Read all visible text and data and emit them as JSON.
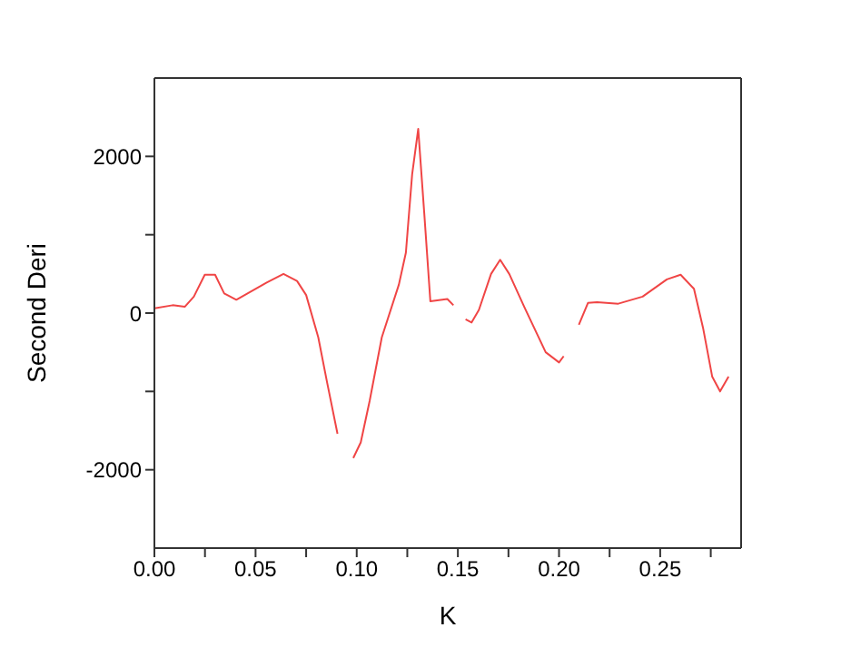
{
  "chart_data": {
    "type": "line",
    "xlabel": "K",
    "ylabel": "Second Deri",
    "x": [
      0,
      0.009,
      0.015,
      0.0195,
      0.0249,
      0.03,
      0.0345,
      0.0405,
      0.0555,
      0.0638,
      0.0705,
      0.075,
      0.081,
      0.0854,
      0.0905,
      0.094,
      0.0983,
      0.102,
      0.1064,
      0.1124,
      0.1208,
      0.1243,
      0.1274,
      0.1304,
      0.1334,
      0.1364,
      0.1448,
      0.1478,
      0.1508,
      0.1538,
      0.1568,
      0.1604,
      0.1664,
      0.1709,
      0.1754,
      0.1828,
      0.1934,
      0.2,
      0.2023,
      0.206,
      0.2098,
      0.2143,
      0.2188,
      0.2293,
      0.2413,
      0.2533,
      0.2601,
      0.2667,
      0.2712,
      0.2757,
      0.2796,
      0.2838
    ],
    "series": [
      {
        "color": "#f04545",
        "values": [
          60,
          100,
          80,
          210,
          490,
          490,
          250,
          170,
          390,
          500,
          410,
          230,
          -310,
          -890,
          -1540,
          null,
          -1850,
          -1650,
          -1120,
          -310,
          360,
          770,
          1770,
          2350,
          1270,
          150,
          180,
          100,
          null,
          -80,
          -120,
          40,
          500,
          680,
          500,
          80,
          -500,
          -630,
          -550,
          null,
          -150,
          130,
          140,
          120,
          210,
          430,
          490,
          310,
          -190,
          -810,
          -1000,
          -810
        ]
      }
    ],
    "xlim": [
      0,
      0.29
    ],
    "xticks": [
      {
        "value": 0,
        "label": "0.00"
      },
      {
        "value": 0.025,
        "label": null
      },
      0.05,
      {
        "value": 0.075,
        "label": null
      },
      {
        "value": 0.1,
        "label": "0.10"
      },
      {
        "value": 0.125,
        "label": null
      },
      0.15,
      {
        "value": 0.175,
        "label": null
      },
      {
        "value": 0.2,
        "label": "0.20"
      },
      {
        "value": 0.225,
        "label": null
      },
      0.25,
      {
        "value": 0.275,
        "label": null
      }
    ],
    "ylim": [
      -3000,
      3000
    ],
    "yticks": [
      -2000,
      {
        "value": -1000,
        "label": null
      },
      0,
      {
        "value": 1000,
        "label": null
      },
      2000
    ],
    "grid": false,
    "legend": false,
    "marker": "none",
    "line_style": "solid"
  }
}
